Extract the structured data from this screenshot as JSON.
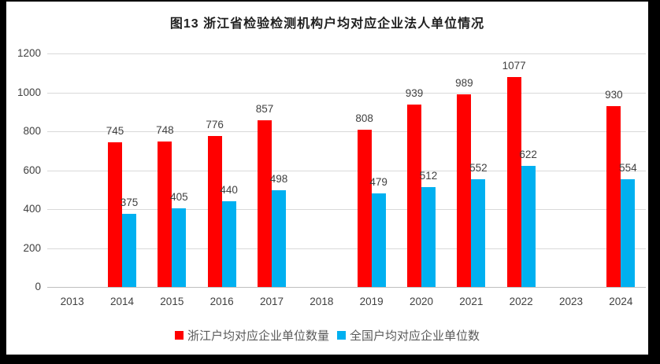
{
  "title": "图13  浙江省检验检测机构户均对应企业法人单位情况",
  "colors": {
    "series_zhejiang": "#ff0000",
    "series_national": "#00b0f0",
    "gridline": "#d9d9d9",
    "axis_text": "#404040",
    "frame": "#000000",
    "panel": "#ffffff"
  },
  "chart_data": {
    "type": "bar",
    "title": "图13  浙江省检验检测机构户均对应企业法人单位情况",
    "categories": [
      "2013",
      "2014",
      "2015",
      "2016",
      "2017",
      "2018",
      "2019",
      "2020",
      "2021",
      "2022",
      "2023",
      "2024"
    ],
    "series": [
      {
        "name": "浙江户均对应企业单位数量",
        "color": "#ff0000",
        "values": [
          null,
          745,
          748,
          776,
          857,
          null,
          808,
          939,
          989,
          1077,
          null,
          930
        ]
      },
      {
        "name": "全国户均对应企业单位数",
        "color": "#00b0f0",
        "values": [
          null,
          375,
          405,
          440,
          498,
          null,
          479,
          512,
          552,
          622,
          null,
          554
        ]
      }
    ],
    "xlabel": "",
    "ylabel": "",
    "ylim": [
      0,
      1200
    ],
    "yticks": [
      0,
      200,
      400,
      600,
      800,
      1000,
      1200
    ],
    "grid": true,
    "data_labels": true,
    "legend_position": "bottom"
  }
}
